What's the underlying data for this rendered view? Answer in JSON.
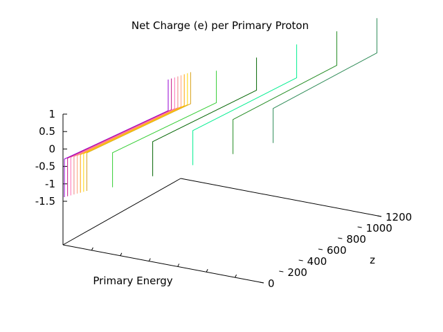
{
  "chart_data": {
    "type": "line",
    "style": "3d-waterfall",
    "title": "Net Charge (e) per Primary Proton",
    "xlabel": "Primary Energy",
    "ylabel": "z",
    "zlabel": "",
    "z_ticks": [
      "1",
      "0.5",
      "0",
      "-0.5",
      "-1",
      "-1.5"
    ],
    "y_ticks": [
      "0",
      "200",
      "400",
      "600",
      "800",
      "1000",
      "1200"
    ],
    "zlim": [
      -2.5,
      1.5
    ],
    "ylim": [
      0,
      1200
    ],
    "grid": false,
    "series": [
      {
        "color": "#9400d3",
        "y_index": 0
      },
      {
        "color": "#c71585",
        "y_index": 0.08
      },
      {
        "color": "#ff69b4",
        "y_index": 0.16
      },
      {
        "color": "#f08080",
        "y_index": 0.24
      },
      {
        "color": "#ffa07a",
        "y_index": 0.32
      },
      {
        "color": "#ffa500",
        "y_index": 0.4
      },
      {
        "color": "#ffd700",
        "y_index": 0.48
      },
      {
        "color": "#daa520",
        "y_index": 0.56
      },
      {
        "color": "#32cd32",
        "y_index": 1.2
      },
      {
        "color": "#006400",
        "y_index": 2.2
      },
      {
        "color": "#00ee90",
        "y_index": 3.2
      },
      {
        "color": "#228b22",
        "y_index": 4.2
      },
      {
        "color": "#2e8b57",
        "y_index": 5.2
      }
    ]
  }
}
